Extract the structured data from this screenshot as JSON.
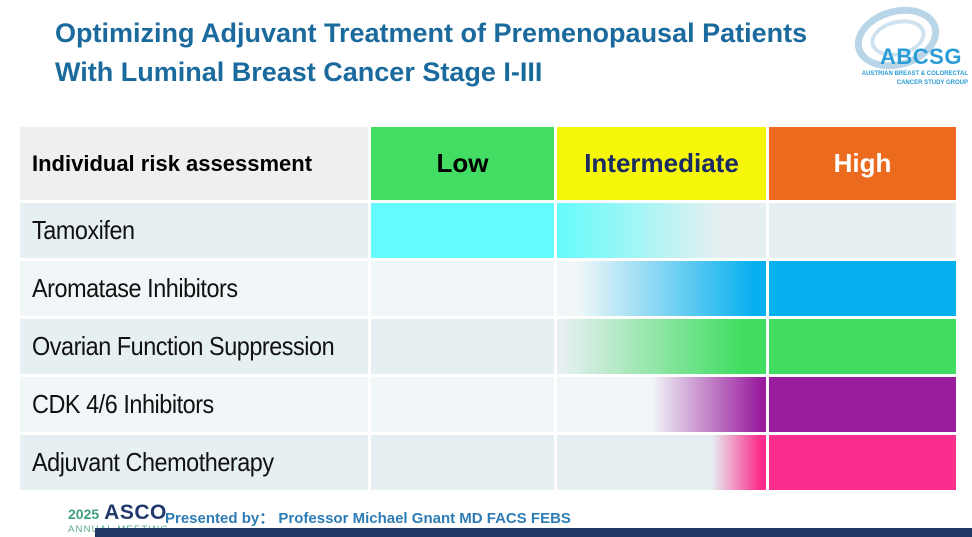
{
  "slide": {
    "title": "Optimizing Adjuvant Treatment of Premenopausal Patients With Luminal Breast Cancer Stage I-III",
    "title_color": "#1a6a9d"
  },
  "abcsg_logo": {
    "name": "ABCSG",
    "subtitle_line1": "AUSTRIAN BREAST & COLORECTAL",
    "subtitle_line2": "CANCER STUDY GROUP",
    "brand_color": "#2a9cd6",
    "swirl_color": "#b9d6e9"
  },
  "chart_data": {
    "type": "heatmap",
    "title": "Optimizing Adjuvant Treatment of Premenopausal Patients With Luminal Breast Cancer Stage I-III",
    "header_label": "Individual risk assessment",
    "x_categories": [
      "Low",
      "Intermediate",
      "High"
    ],
    "risk_axis_range": [
      0,
      3
    ],
    "risk_axis_note": "Low = 0-1, Intermediate = 1-2, High = 2-3",
    "header_columns": [
      {
        "label": "Low",
        "bg": "#42dd62",
        "fg": "#000000"
      },
      {
        "label": "Intermediate",
        "bg": "#f6f60b",
        "fg": "#1a2b63"
      },
      {
        "label": "High",
        "bg": "#ec6a1d",
        "fg": "#ffffff"
      }
    ],
    "rows": [
      {
        "label": "Tamoxifen",
        "bar_color": "#63fbfb",
        "band": [
          0,
          1.8
        ],
        "coverage": "solid across Low, fades out through ~80% of Intermediate"
      },
      {
        "label": "Aromatase Inhibitors",
        "bar_color": "#08b0ef",
        "band": [
          1.1,
          3
        ],
        "coverage": "fades in across Intermediate, solid across High"
      },
      {
        "label": "Ovarian Function Suppression",
        "bar_color": "#41dd62",
        "band": [
          1.0,
          3
        ],
        "coverage": "fades in from start of Intermediate, solid across High"
      },
      {
        "label": "CDK 4/6 Inhibitors",
        "bar_color": "#9a1d9e",
        "band": [
          1.45,
          3
        ],
        "coverage": "fades in from ~45% of Intermediate, solid across High"
      },
      {
        "label": "Adjuvant Chemotherapy",
        "bar_color": "#fb2e8d",
        "band": [
          1.75,
          3
        ],
        "coverage": "fades in near end of Intermediate, solid across High"
      }
    ],
    "legend_position": "none",
    "grid": false
  },
  "footer": {
    "asco_year": "2025",
    "asco_name": "ASCO",
    "asco_meeting": "ANNUAL MEETING",
    "presented_label": "Presented by：",
    "presenter": "Professor Michael Gnant MD FACS FEBS",
    "bar_color": "#1f3864"
  }
}
